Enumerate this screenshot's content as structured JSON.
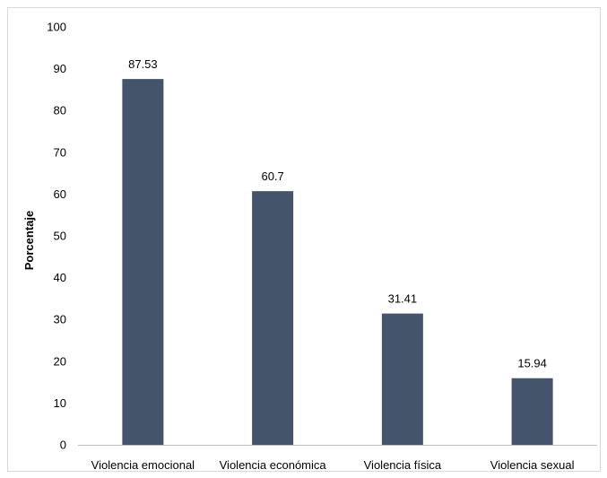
{
  "chart_data": {
    "type": "bar",
    "title": "",
    "xlabel": "",
    "ylabel": "Porcentaje",
    "categories": [
      "Violencia emocional",
      "Violencia económica",
      "Violencia física",
      "Violencia sexual"
    ],
    "values": [
      87.53,
      60.7,
      31.41,
      15.94
    ],
    "data_labels": [
      "87.53",
      "60.7",
      "31.41",
      "15.94"
    ],
    "ylim": [
      0,
      100
    ],
    "yticks": [
      0,
      10,
      20,
      30,
      40,
      50,
      60,
      70,
      80,
      90,
      100
    ],
    "grid": false,
    "legend": "none",
    "colors": {
      "bar": "#44546a",
      "axis": "#bfbfbf",
      "border": "#d9d9d9"
    }
  }
}
